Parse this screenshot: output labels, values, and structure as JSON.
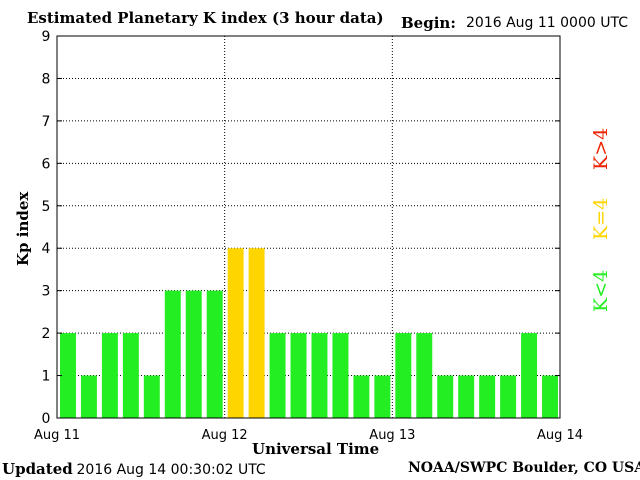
{
  "header": {
    "title": "Estimated Planetary K index (3 hour data)",
    "begin_label": "Begin:",
    "begin_value": "2016 Aug 11 0000 UTC"
  },
  "footer": {
    "updated_label": "Updated",
    "updated_value": "2016 Aug 14 00:30:02 UTC",
    "credit": "NOAA/SWPC Boulder, CO USA"
  },
  "legend": {
    "low": "K<4",
    "mid": "K=4",
    "high": "K>4"
  },
  "colors": {
    "low": "#22ee22",
    "mid": "#ffd500",
    "high": "#ee2200"
  },
  "chart_data": {
    "type": "bar",
    "title": "Estimated Planetary K index (3 hour data)",
    "xlabel": "Universal Time",
    "ylabel": "Kp index",
    "ylim": [
      0,
      9
    ],
    "yticks": [
      "0",
      "1",
      "2",
      "3",
      "4",
      "5",
      "6",
      "7",
      "8",
      "9"
    ],
    "xticks": [
      "Aug 11",
      "Aug 12",
      "Aug 13",
      "Aug 14"
    ],
    "grid": true,
    "values": [
      2,
      1,
      2,
      2,
      1,
      3,
      3,
      3,
      4,
      4,
      2,
      2,
      2,
      2,
      1,
      1,
      2,
      2,
      1,
      1,
      1,
      1,
      2,
      1
    ]
  }
}
